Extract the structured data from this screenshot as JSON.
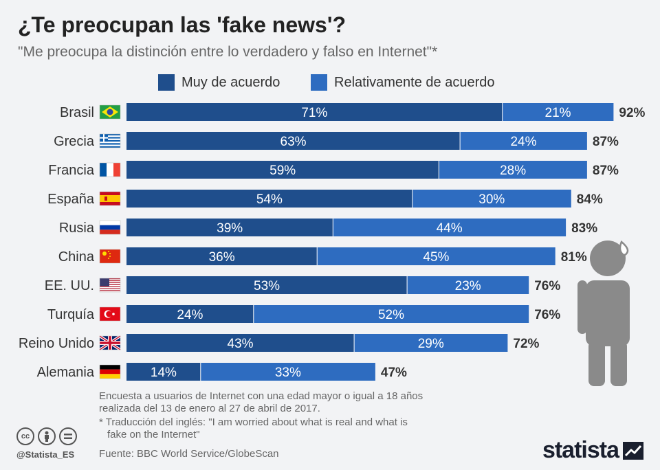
{
  "title": "¿Te preocupan las 'fake news'?",
  "subtitle": "\"Me preocupa la distinción entre lo verdadero y falso en Internet\"*",
  "colors": {
    "muy": "#1f4e8c",
    "relativamente": "#2e6cc0",
    "figure": "#8a8a8a"
  },
  "chart_data": {
    "type": "bar",
    "orientation": "horizontal",
    "stacked": true,
    "categories": [
      "Brasil",
      "Grecia",
      "Francia",
      "España",
      "Rusia",
      "China",
      "EE. UU.",
      "Turquía",
      "Reino Unido",
      "Alemania"
    ],
    "flags": [
      "flag-brazil",
      "flag-greece",
      "flag-france",
      "flag-spain",
      "flag-russia",
      "flag-china",
      "flag-usa",
      "flag-turkey",
      "flag-uk",
      "flag-germany"
    ],
    "series": [
      {
        "name": "Muy de acuerdo",
        "values": [
          71,
          63,
          59,
          54,
          39,
          36,
          53,
          24,
          43,
          14
        ]
      },
      {
        "name": "Relativamente de acuerdo",
        "values": [
          21,
          24,
          28,
          30,
          44,
          45,
          23,
          52,
          29,
          33
        ]
      }
    ],
    "totals": [
      92,
      87,
      87,
      84,
      83,
      81,
      76,
      76,
      72,
      47
    ],
    "value_suffix": "%",
    "legend_position": "top",
    "grid": false
  },
  "notes": {
    "line1": "Encuesta a usuarios de Internet con una edad mayor o igual a 18 años",
    "line2": "realizada del 13 de enero al 27 de abril de 2017.",
    "line3": "* Traducción del inglés: \"I am worried about what is real and what is",
    "line4": "fake on the Internet\""
  },
  "source": "Fuente: BBC World Service/GlobeScan",
  "handle": "@Statista_ES",
  "brand": "statista",
  "license_icons": [
    "cc-icon",
    "by-icon",
    "nd-icon"
  ]
}
